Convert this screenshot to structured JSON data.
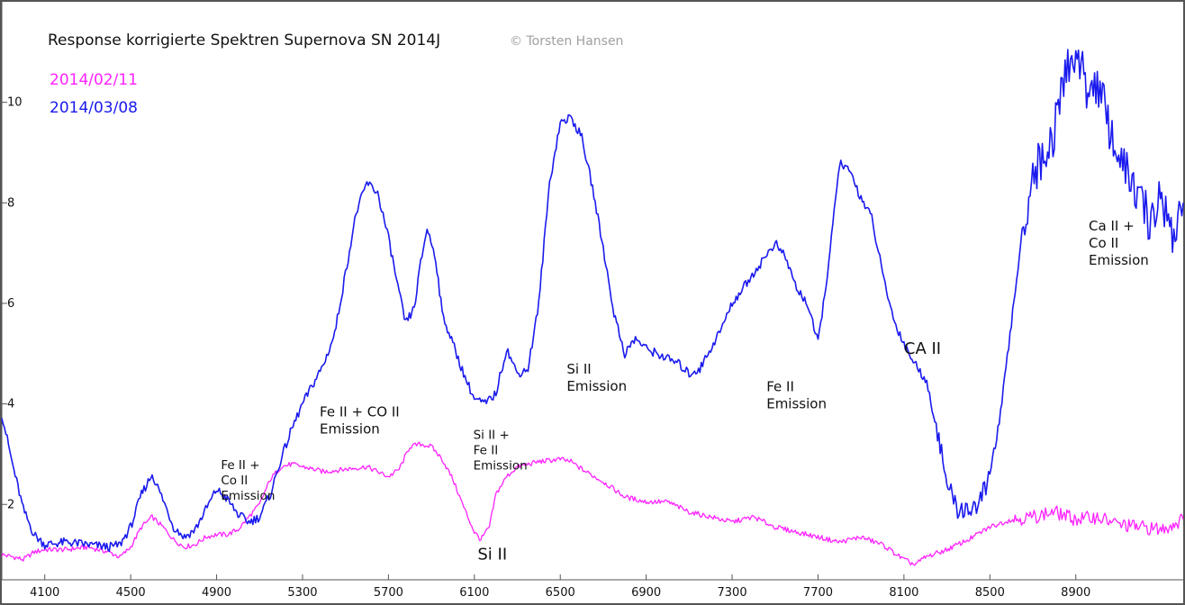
{
  "chart_data": {
    "type": "line",
    "title": "Response korrigierte Spektren Supernova SN 2014J",
    "copyright": "© Torsten Hansen",
    "xlabel": "",
    "ylabel": "",
    "xlim": [
      3900,
      9400
    ],
    "ylim": [
      0.5,
      12.0
    ],
    "x_ticks": [
      4100,
      4500,
      4900,
      5300,
      5700,
      6100,
      6500,
      6900,
      7300,
      7700,
      8100,
      8500,
      8900
    ],
    "y_ticks": [
      2,
      4,
      6,
      8,
      10
    ],
    "grid": false,
    "legend_position": "top-left",
    "series": [
      {
        "name": "2014/02/11",
        "color": "#ff22ff",
        "points": [
          [
            3900,
            1.0
          ],
          [
            3960,
            0.95
          ],
          [
            4000,
            0.9
          ],
          [
            4050,
            1.05
          ],
          [
            4100,
            1.1
          ],
          [
            4200,
            1.1
          ],
          [
            4300,
            1.15
          ],
          [
            4400,
            1.05
          ],
          [
            4450,
            0.95
          ],
          [
            4500,
            1.15
          ],
          [
            4550,
            1.55
          ],
          [
            4600,
            1.75
          ],
          [
            4650,
            1.55
          ],
          [
            4700,
            1.3
          ],
          [
            4750,
            1.15
          ],
          [
            4800,
            1.2
          ],
          [
            4850,
            1.35
          ],
          [
            4900,
            1.4
          ],
          [
            4950,
            1.4
          ],
          [
            5000,
            1.5
          ],
          [
            5050,
            1.75
          ],
          [
            5100,
            2.0
          ],
          [
            5150,
            2.5
          ],
          [
            5200,
            2.75
          ],
          [
            5250,
            2.8
          ],
          [
            5300,
            2.75
          ],
          [
            5400,
            2.65
          ],
          [
            5500,
            2.7
          ],
          [
            5600,
            2.75
          ],
          [
            5700,
            2.55
          ],
          [
            5750,
            2.7
          ],
          [
            5800,
            3.15
          ],
          [
            5850,
            3.2
          ],
          [
            5900,
            3.15
          ],
          [
            5950,
            2.9
          ],
          [
            6000,
            2.5
          ],
          [
            6050,
            1.95
          ],
          [
            6100,
            1.45
          ],
          [
            6130,
            1.3
          ],
          [
            6170,
            1.55
          ],
          [
            6200,
            2.2
          ],
          [
            6250,
            2.55
          ],
          [
            6300,
            2.75
          ],
          [
            6400,
            2.85
          ],
          [
            6500,
            2.9
          ],
          [
            6550,
            2.85
          ],
          [
            6600,
            2.7
          ],
          [
            6700,
            2.45
          ],
          [
            6800,
            2.15
          ],
          [
            6900,
            2.05
          ],
          [
            7000,
            2.05
          ],
          [
            7100,
            1.85
          ],
          [
            7200,
            1.75
          ],
          [
            7300,
            1.65
          ],
          [
            7400,
            1.75
          ],
          [
            7500,
            1.55
          ],
          [
            7600,
            1.45
          ],
          [
            7700,
            1.35
          ],
          [
            7800,
            1.25
          ],
          [
            7900,
            1.35
          ],
          [
            8000,
            1.2
          ],
          [
            8100,
            0.9
          ],
          [
            8150,
            0.8
          ],
          [
            8200,
            0.95
          ],
          [
            8300,
            1.1
          ],
          [
            8400,
            1.3
          ],
          [
            8500,
            1.55
          ],
          [
            8600,
            1.7
          ],
          [
            8700,
            1.75
          ],
          [
            8800,
            1.85
          ],
          [
            8900,
            1.7
          ],
          [
            9000,
            1.75
          ],
          [
            9100,
            1.6
          ],
          [
            9200,
            1.55
          ],
          [
            9300,
            1.5
          ],
          [
            9400,
            1.7
          ]
        ]
      },
      {
        "name": "2014/03/08",
        "color": "#1a1aee",
        "points": [
          [
            3900,
            3.8
          ],
          [
            3950,
            2.8
          ],
          [
            4000,
            1.9
          ],
          [
            4050,
            1.4
          ],
          [
            4100,
            1.2
          ],
          [
            4200,
            1.25
          ],
          [
            4300,
            1.2
          ],
          [
            4400,
            1.15
          ],
          [
            4450,
            1.2
          ],
          [
            4500,
            1.55
          ],
          [
            4550,
            2.2
          ],
          [
            4600,
            2.6
          ],
          [
            4650,
            2.1
          ],
          [
            4700,
            1.55
          ],
          [
            4750,
            1.35
          ],
          [
            4800,
            1.5
          ],
          [
            4850,
            1.9
          ],
          [
            4900,
            2.3
          ],
          [
            4950,
            2.1
          ],
          [
            5000,
            1.8
          ],
          [
            5050,
            1.65
          ],
          [
            5100,
            1.75
          ],
          [
            5150,
            2.2
          ],
          [
            5200,
            2.9
          ],
          [
            5250,
            3.5
          ],
          [
            5300,
            4.0
          ],
          [
            5400,
            4.8
          ],
          [
            5450,
            5.4
          ],
          [
            5500,
            6.6
          ],
          [
            5550,
            7.8
          ],
          [
            5600,
            8.4
          ],
          [
            5650,
            8.2
          ],
          [
            5700,
            7.3
          ],
          [
            5750,
            6.2
          ],
          [
            5780,
            5.6
          ],
          [
            5820,
            5.9
          ],
          [
            5850,
            6.8
          ],
          [
            5880,
            7.5
          ],
          [
            5920,
            6.9
          ],
          [
            5950,
            5.8
          ],
          [
            6000,
            5.2
          ],
          [
            6050,
            4.6
          ],
          [
            6100,
            4.1
          ],
          [
            6150,
            4.0
          ],
          [
            6200,
            4.2
          ],
          [
            6250,
            5.1
          ],
          [
            6300,
            4.6
          ],
          [
            6350,
            4.7
          ],
          [
            6400,
            6.0
          ],
          [
            6450,
            8.4
          ],
          [
            6500,
            9.6
          ],
          [
            6550,
            9.7
          ],
          [
            6600,
            9.3
          ],
          [
            6650,
            8.3
          ],
          [
            6700,
            7.1
          ],
          [
            6750,
            5.8
          ],
          [
            6800,
            5.0
          ],
          [
            6850,
            5.3
          ],
          [
            6900,
            5.1
          ],
          [
            6950,
            5.0
          ],
          [
            7000,
            4.9
          ],
          [
            7050,
            4.8
          ],
          [
            7100,
            4.6
          ],
          [
            7150,
            4.7
          ],
          [
            7200,
            5.1
          ],
          [
            7250,
            5.5
          ],
          [
            7300,
            6.0
          ],
          [
            7350,
            6.3
          ],
          [
            7400,
            6.6
          ],
          [
            7450,
            6.9
          ],
          [
            7500,
            7.2
          ],
          [
            7550,
            6.9
          ],
          [
            7600,
            6.3
          ],
          [
            7650,
            6.0
          ],
          [
            7700,
            5.2
          ],
          [
            7750,
            6.8
          ],
          [
            7800,
            8.8
          ],
          [
            7850,
            8.6
          ],
          [
            7900,
            8.1
          ],
          [
            7950,
            7.7
          ],
          [
            8000,
            6.6
          ],
          [
            8050,
            5.7
          ],
          [
            8100,
            5.2
          ],
          [
            8150,
            4.8
          ],
          [
            8200,
            4.5
          ],
          [
            8250,
            3.6
          ],
          [
            8300,
            2.4
          ],
          [
            8350,
            1.9
          ],
          [
            8400,
            1.9
          ],
          [
            8450,
            2.0
          ],
          [
            8500,
            2.6
          ],
          [
            8550,
            3.8
          ],
          [
            8600,
            5.6
          ],
          [
            8650,
            7.4
          ],
          [
            8700,
            8.6
          ],
          [
            8750,
            8.9
          ],
          [
            8800,
            9.4
          ],
          [
            8850,
            10.6
          ],
          [
            8900,
            11.0
          ],
          [
            8950,
            10.3
          ],
          [
            9000,
            10.4
          ],
          [
            9050,
            9.6
          ],
          [
            9100,
            8.9
          ],
          [
            9150,
            8.5
          ],
          [
            9200,
            8.0
          ],
          [
            9250,
            7.6
          ],
          [
            9300,
            8.2
          ],
          [
            9350,
            7.3
          ],
          [
            9400,
            8.0
          ]
        ]
      }
    ],
    "annotations": [
      {
        "lines": [
          "Fe II +",
          "Co II",
          "Emission"
        ],
        "x": 4920,
        "y": 2.7,
        "size": "small"
      },
      {
        "lines": [
          "Fe II + CO II",
          "Emission"
        ],
        "x": 5380,
        "y": 3.75,
        "size": "normal"
      },
      {
        "lines": [
          "Si II +",
          "Fe II",
          "Emission"
        ],
        "x": 6095,
        "y": 3.3,
        "size": "small"
      },
      {
        "lines": [
          "Si II"
        ],
        "x": 6115,
        "y": 0.9,
        "size": "large"
      },
      {
        "lines": [
          "Si II",
          "Emission"
        ],
        "x": 6530,
        "y": 4.6,
        "size": "normal"
      },
      {
        "lines": [
          "Fe II",
          "Emission"
        ],
        "x": 7460,
        "y": 4.25,
        "size": "normal"
      },
      {
        "lines": [
          "CA II"
        ],
        "x": 8100,
        "y": 5.0,
        "size": "large"
      },
      {
        "lines": [
          "Ca II +",
          "Co II",
          "Emission"
        ],
        "x": 8960,
        "y": 7.45,
        "size": "normal"
      }
    ]
  }
}
